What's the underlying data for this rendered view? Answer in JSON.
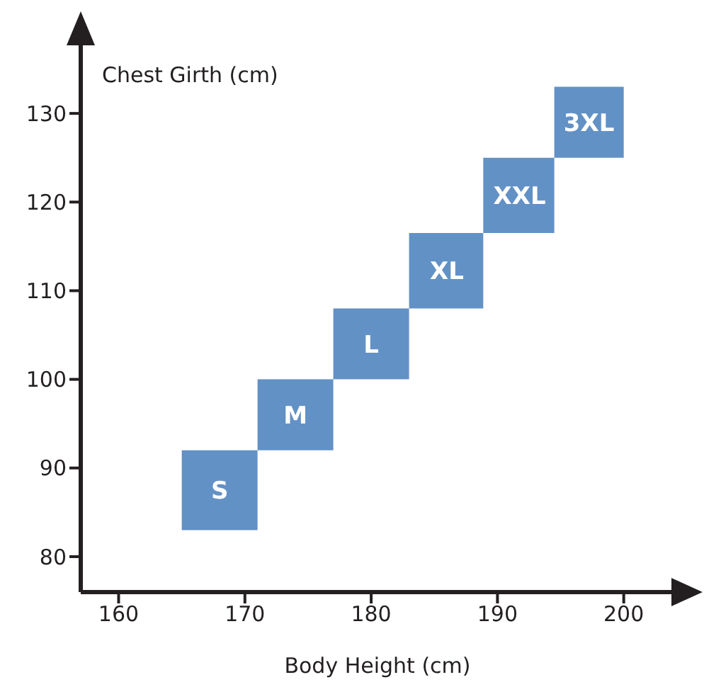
{
  "chart_data": {
    "type": "bar",
    "xlabel": "Body Height (cm)",
    "ylabel": "Chest Girth (cm)",
    "x": [
      168,
      174,
      180,
      186,
      191.75,
      197.25
    ],
    "base": [
      83,
      92,
      100,
      108,
      116.5,
      125
    ],
    "values": [
      9,
      8,
      8,
      8.5,
      8.5,
      8
    ],
    "annotations": [
      "S",
      "M",
      "L",
      "XL",
      "XXL",
      "3XL"
    ],
    "color": "#6291c5",
    "xlim": [
      157,
      204
    ],
    "xticks": [
      160,
      170,
      180,
      190,
      200
    ],
    "ylim": [
      76,
      138
    ],
    "yticks": [
      80,
      90,
      100,
      110,
      120,
      130
    ],
    "grid": false
  }
}
